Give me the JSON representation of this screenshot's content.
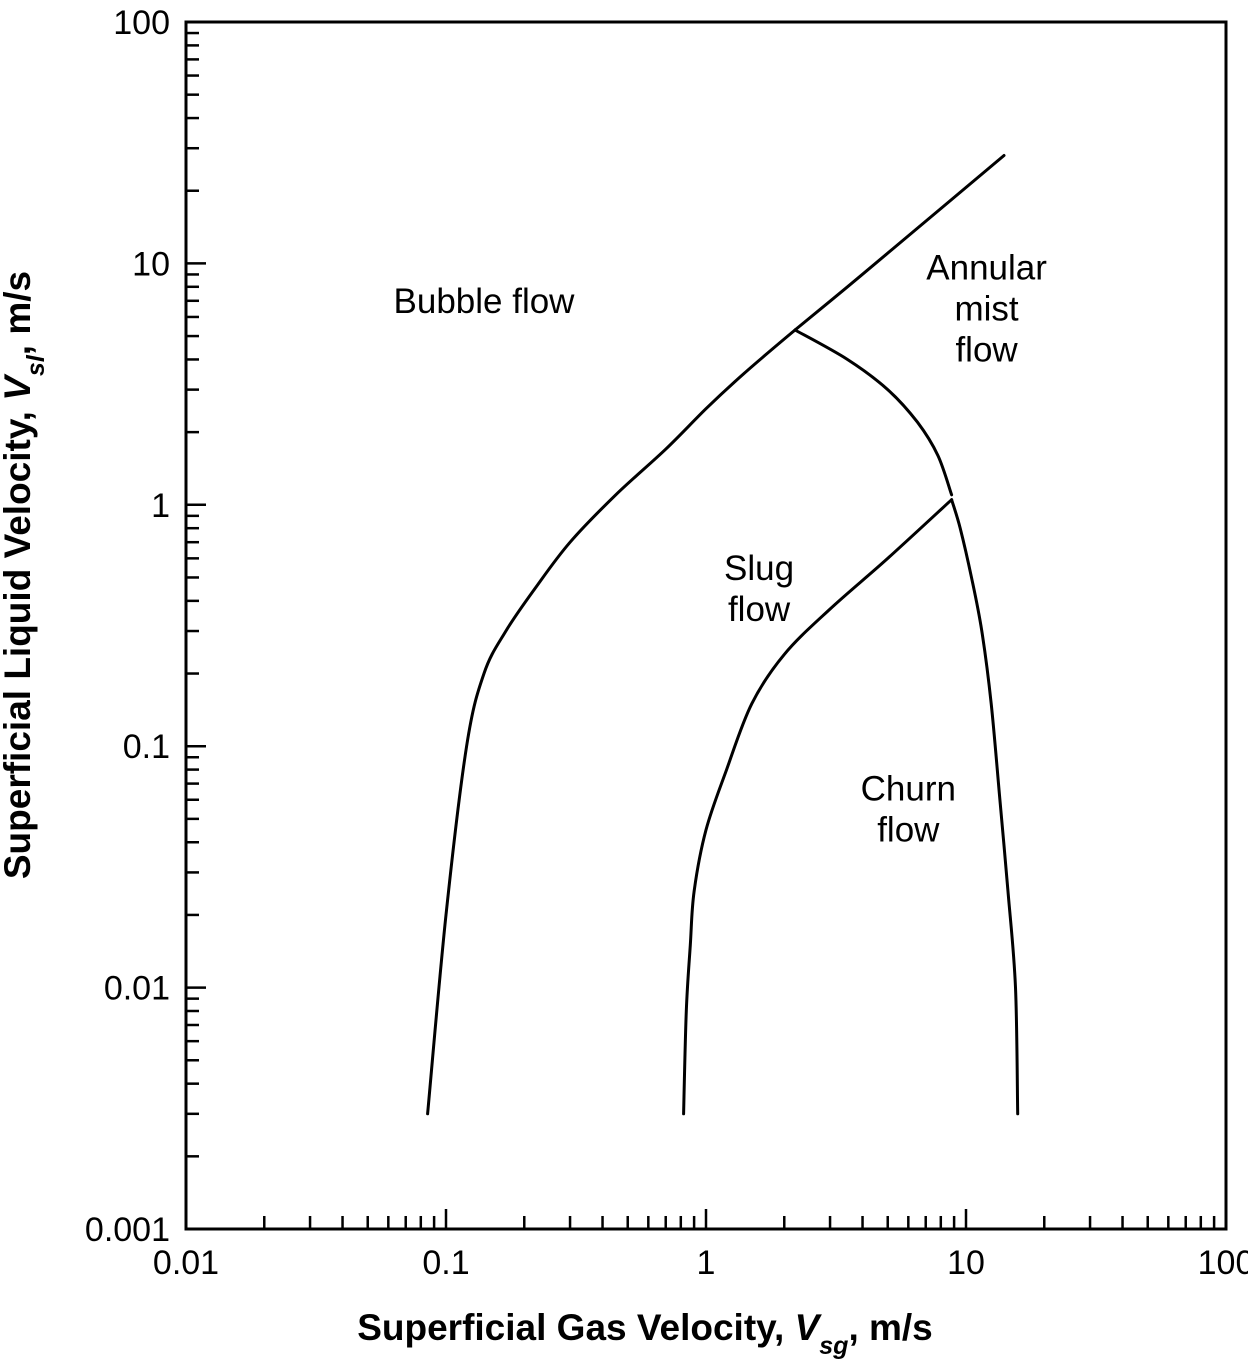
{
  "chart_data": {
    "type": "line",
    "xscale": "log",
    "yscale": "log",
    "xlim": [
      0.01,
      100
    ],
    "ylim": [
      0.001,
      100
    ],
    "grid": false,
    "xticks": [
      {
        "value": 0.01,
        "label": "0.01"
      },
      {
        "value": 0.1,
        "label": "0.1"
      },
      {
        "value": 1,
        "label": "1"
      },
      {
        "value": 10,
        "label": "10"
      },
      {
        "value": 100,
        "label": "100"
      }
    ],
    "yticks": [
      {
        "value": 0.001,
        "label": "0.001"
      },
      {
        "value": 0.01,
        "label": "0.01"
      },
      {
        "value": 0.1,
        "label": "0.1"
      },
      {
        "value": 1,
        "label": "1"
      },
      {
        "value": 10,
        "label": "10"
      },
      {
        "value": 100,
        "label": "100"
      }
    ],
    "xlabel": {
      "pre": "Superficial Gas Velocity, ",
      "var": "V",
      "sub": "sg",
      "post": ", m/s"
    },
    "ylabel": {
      "pre": "Superficial Liquid Velocity, ",
      "var": "V",
      "sub": "sl",
      "post": ", m/s"
    },
    "series": [
      {
        "id": "bubble-slug-boundary",
        "points": [
          [
            0.085,
            0.003
          ],
          [
            0.1,
            0.02
          ],
          [
            0.12,
            0.1
          ],
          [
            0.14,
            0.2
          ],
          [
            0.17,
            0.3
          ],
          [
            0.22,
            0.45
          ],
          [
            0.3,
            0.7
          ],
          [
            0.45,
            1.1
          ],
          [
            0.7,
            1.7
          ],
          [
            1.0,
            2.5
          ],
          [
            1.4,
            3.5
          ],
          [
            2.2,
            5.3
          ]
        ]
      },
      {
        "id": "bubble-annular-boundary",
        "points": [
          [
            2.2,
            5.3
          ],
          [
            3.5,
            8
          ],
          [
            6,
            13
          ],
          [
            14,
            28
          ]
        ]
      },
      {
        "id": "slug-annular-boundary",
        "points": [
          [
            2.2,
            5.3
          ],
          [
            3.5,
            4.0
          ],
          [
            5,
            3.0
          ],
          [
            6.5,
            2.2
          ],
          [
            7.8,
            1.6
          ],
          [
            8.8,
            1.1
          ]
        ]
      },
      {
        "id": "slug-churn-boundary",
        "points": [
          [
            0.82,
            0.003
          ],
          [
            0.84,
            0.008
          ],
          [
            0.87,
            0.015
          ],
          [
            0.9,
            0.025
          ],
          [
            1.0,
            0.045
          ],
          [
            1.2,
            0.08
          ],
          [
            1.5,
            0.15
          ],
          [
            2.0,
            0.24
          ],
          [
            3.0,
            0.37
          ],
          [
            5.0,
            0.6
          ],
          [
            8.8,
            1.05
          ]
        ]
      },
      {
        "id": "churn-annular-boundary",
        "points": [
          [
            8.8,
            1.05
          ],
          [
            9.5,
            0.8
          ],
          [
            10.5,
            0.5
          ],
          [
            11.5,
            0.3
          ],
          [
            12.5,
            0.15
          ],
          [
            13.5,
            0.06
          ],
          [
            14.5,
            0.025
          ],
          [
            15.5,
            0.01
          ],
          [
            15.8,
            0.003
          ]
        ]
      }
    ],
    "regions": [
      {
        "id": "bubble-flow",
        "lines": [
          "Bubble flow"
        ],
        "x": 0.14,
        "y": 7
      },
      {
        "id": "slug-flow",
        "lines": [
          "Slug",
          "flow"
        ],
        "x": 1.6,
        "y": 0.45
      },
      {
        "id": "annular-mist-flow",
        "lines": [
          "Annular",
          "mist",
          "flow"
        ],
        "x": 12,
        "y": 6.5
      },
      {
        "id": "churn-flow",
        "lines": [
          "Churn",
          "flow"
        ],
        "x": 6,
        "y": 0.055
      }
    ]
  }
}
